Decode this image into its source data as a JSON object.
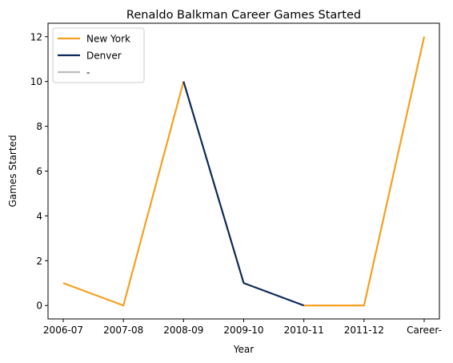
{
  "chart_data": {
    "type": "line",
    "title": "Renaldo Balkman Career Games Started",
    "xlabel": "Year",
    "ylabel": "Games Started",
    "categories": [
      "2006-07",
      "2007-08",
      "2008-09",
      "2009-10",
      "2010-11",
      "2011-12",
      "Career-"
    ],
    "ylim": [
      -0.6,
      12.6
    ],
    "yticks": [
      0,
      2,
      4,
      6,
      8,
      10,
      12
    ],
    "grid": false,
    "legend_position": "top-left",
    "series": [
      {
        "name": "New York",
        "color": "#f5a020",
        "segments": [
          {
            "x": [
              "2006-07",
              "2007-08",
              "2008-09"
            ],
            "y": [
              1,
              0,
              10
            ]
          },
          {
            "x": [
              "2010-11",
              "2011-12",
              "Career-"
            ],
            "y": [
              0,
              0,
              12
            ]
          }
        ]
      },
      {
        "name": "Denver",
        "color": "#0e2a5a",
        "segments": [
          {
            "x": [
              "2008-09",
              "2009-10",
              "2010-11"
            ],
            "y": [
              10,
              1,
              0
            ]
          }
        ]
      },
      {
        "name": "-",
        "color": "#bdbdbd",
        "segments": []
      }
    ]
  }
}
